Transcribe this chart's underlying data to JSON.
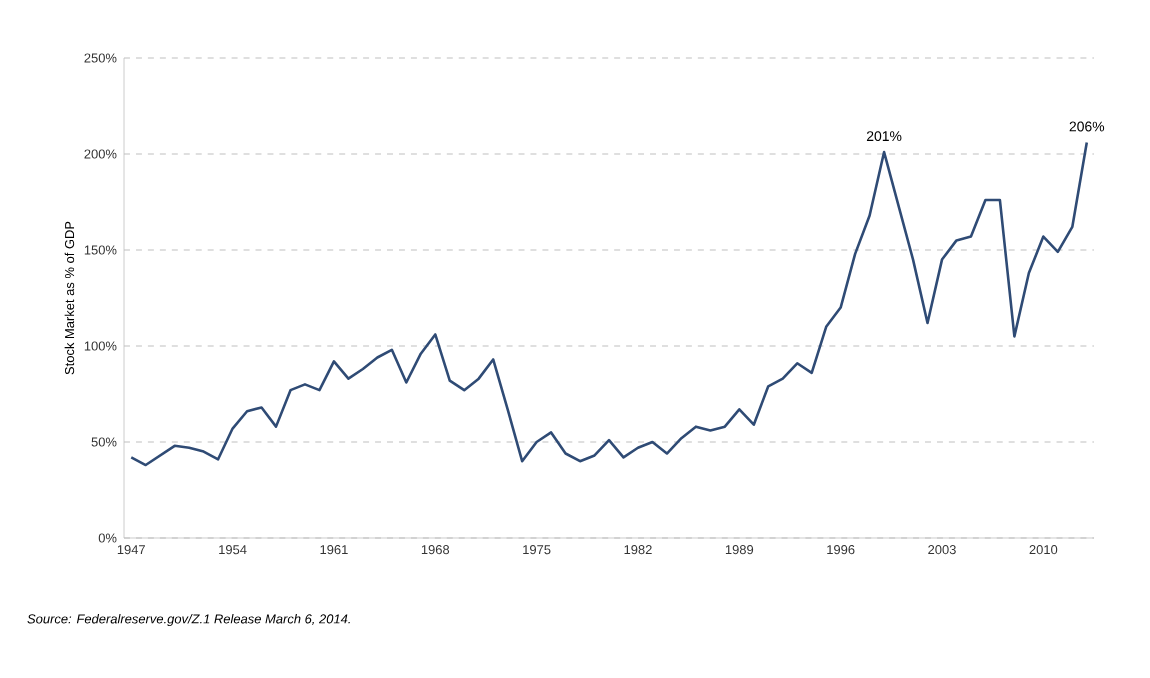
{
  "chart_data": {
    "type": "line",
    "ylabel": "Stock Market as % of GDP",
    "x": [
      1947,
      1948,
      1949,
      1950,
      1951,
      1952,
      1953,
      1954,
      1955,
      1956,
      1957,
      1958,
      1959,
      1960,
      1961,
      1962,
      1963,
      1964,
      1965,
      1966,
      1967,
      1968,
      1969,
      1970,
      1971,
      1972,
      1973,
      1974,
      1975,
      1976,
      1977,
      1978,
      1979,
      1980,
      1981,
      1982,
      1983,
      1984,
      1985,
      1986,
      1987,
      1988,
      1989,
      1990,
      1991,
      1992,
      1993,
      1994,
      1995,
      1996,
      1997,
      1998,
      1999,
      2000,
      2001,
      2002,
      2003,
      2004,
      2005,
      2006,
      2007,
      2008,
      2009,
      2010,
      2011,
      2012,
      2013
    ],
    "series": [
      {
        "color": "#2f4b75",
        "values": [
          42,
          38,
          43,
          48,
          47,
          45,
          41,
          57,
          66,
          68,
          58,
          77,
          80,
          77,
          92,
          83,
          88,
          94,
          98,
          81,
          96,
          106,
          82,
          77,
          83,
          93,
          67,
          40,
          50,
          55,
          44,
          40,
          43,
          51,
          42,
          47,
          50,
          44,
          52,
          58,
          56,
          58,
          67,
          59,
          79,
          83,
          91,
          86,
          110,
          120,
          148,
          168,
          201,
          173,
          145,
          112,
          145,
          155,
          157,
          176,
          176,
          105,
          138,
          157,
          149,
          162,
          206
        ]
      }
    ],
    "xlim": [
      1946.5,
      2013.5
    ],
    "xticks": [
      1947,
      1954,
      1961,
      1968,
      1975,
      1982,
      1989,
      1996,
      2003,
      2010
    ],
    "ylim": [
      0,
      250
    ],
    "yticks": [
      {
        "value": 0,
        "label": "0%"
      },
      {
        "value": 50,
        "label": "50%"
      },
      {
        "value": 100,
        "label": "100%"
      },
      {
        "value": 150,
        "label": "150%"
      },
      {
        "value": 200,
        "label": "200%"
      },
      {
        "value": 250,
        "label": "250%"
      }
    ],
    "grid": "y",
    "line_style": "solid",
    "marker": "none",
    "annotations": [
      {
        "text": "201%",
        "x": 1999,
        "y": 201
      },
      {
        "text": "206%",
        "x": 2013,
        "y": 206
      },
      "Source: Federalreserve.gov/Z.1 Release March 6, 2014."
    ]
  }
}
